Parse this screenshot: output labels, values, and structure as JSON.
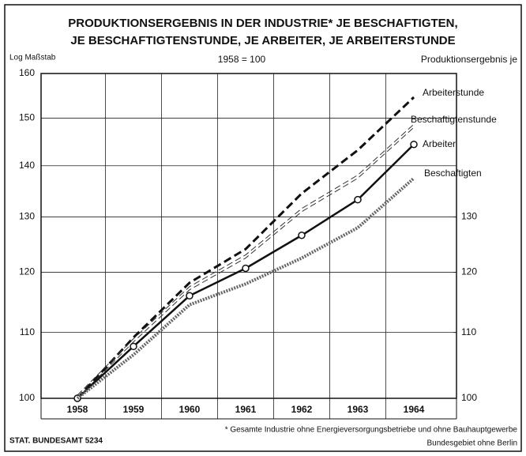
{
  "chart_data": {
    "type": "line",
    "title": "PRODUKTIONSERGEBNIS IN DER INDUSTRIE* JE BESCHAFTIGTEN,",
    "title2": "JE BESCHAFTIGTENSTUNDE, JE ARBEITER, JE ARBEITERSTUNDE",
    "ylabel": "Log Maßstab",
    "subtitle": "1958 = 100",
    "y2label": "Produktionsergebnis je",
    "footnote": "* Gesamte Industrie ohne Energieversorgungsbetriebe und ohne Bauhauptgewerbe",
    "footnote2": "Bundesgebiet ohne Berlin",
    "source": "STAT. BUNDESAMT 5234",
    "categories": [
      "1958",
      "1959",
      "1960",
      "1961",
      "1962",
      "1963",
      "1964"
    ],
    "series": [
      {
        "name": "Arbeiterstunde",
        "color": "#111111",
        "style": "dashed",
        "values": [
          100,
          109.2,
          118.2,
          124.1,
          134.5,
          143.2,
          154.6
        ]
      },
      {
        "name": "Beschaftigtenstunde",
        "color": "#333333",
        "style": "double-dashed",
        "values": [
          100,
          108.5,
          117,
          122.5,
          131,
          137.5,
          148
        ]
      },
      {
        "name": "Arbeiter",
        "color": "#111111",
        "style": "solid-markers",
        "values": [
          100,
          107.8,
          116,
          120.7,
          126.6,
          133.3,
          144.4
        ]
      },
      {
        "name": "Beschaftigten",
        "color": "#666666",
        "style": "hatched",
        "values": [
          100,
          106.5,
          114.5,
          118,
          122.5,
          128,
          137.5
        ]
      }
    ],
    "ylim": [
      100,
      160
    ],
    "yticks": [
      100,
      110,
      120,
      130,
      140,
      150,
      160
    ],
    "y2lim": [
      100,
      160
    ],
    "y2ticks": [
      100,
      110,
      120,
      130
    ],
    "log_scale": true,
    "grid": true
  }
}
